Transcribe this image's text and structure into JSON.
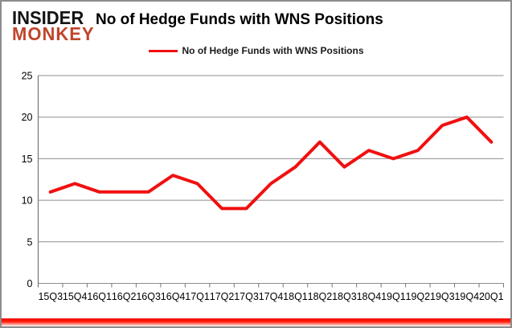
{
  "logo": {
    "line1": "INSIDER",
    "line2": "MONKEY"
  },
  "header": {
    "title": "No of Hedge Funds with WNS Positions"
  },
  "legend": {
    "label": "No of Hedge Funds with WNS Positions"
  },
  "colors": {
    "line_red": "#f01010",
    "logo_red": "#c0452b",
    "gridline_gray": "#8e8e8e",
    "axis_gray": "#757575",
    "border_gray": "#8c8c8c",
    "text_black": "#000000"
  },
  "chart_data": {
    "type": "line",
    "title": "No of Hedge Funds with WNS Positions",
    "categories": [
      "15Q3",
      "15Q4",
      "16Q1",
      "16Q2",
      "16Q3",
      "16Q4",
      "17Q1",
      "17Q2",
      "17Q3",
      "17Q4",
      "18Q1",
      "18Q2",
      "18Q3",
      "18Q4",
      "19Q1",
      "19Q2",
      "19Q3",
      "19Q4",
      "20Q1"
    ],
    "series": [
      {
        "name": "No of Hedge Funds with WNS Positions",
        "values": [
          11,
          12,
          11,
          11,
          11,
          13,
          12,
          9,
          9,
          12,
          14,
          17,
          14,
          16,
          15,
          16,
          19,
          20,
          17
        ]
      }
    ],
    "xlabel": "",
    "ylabel": "",
    "ylim": [
      0,
      25
    ],
    "yticks": [
      0,
      5,
      10,
      15,
      20,
      25
    ],
    "grid": true,
    "legend_position": "top"
  }
}
